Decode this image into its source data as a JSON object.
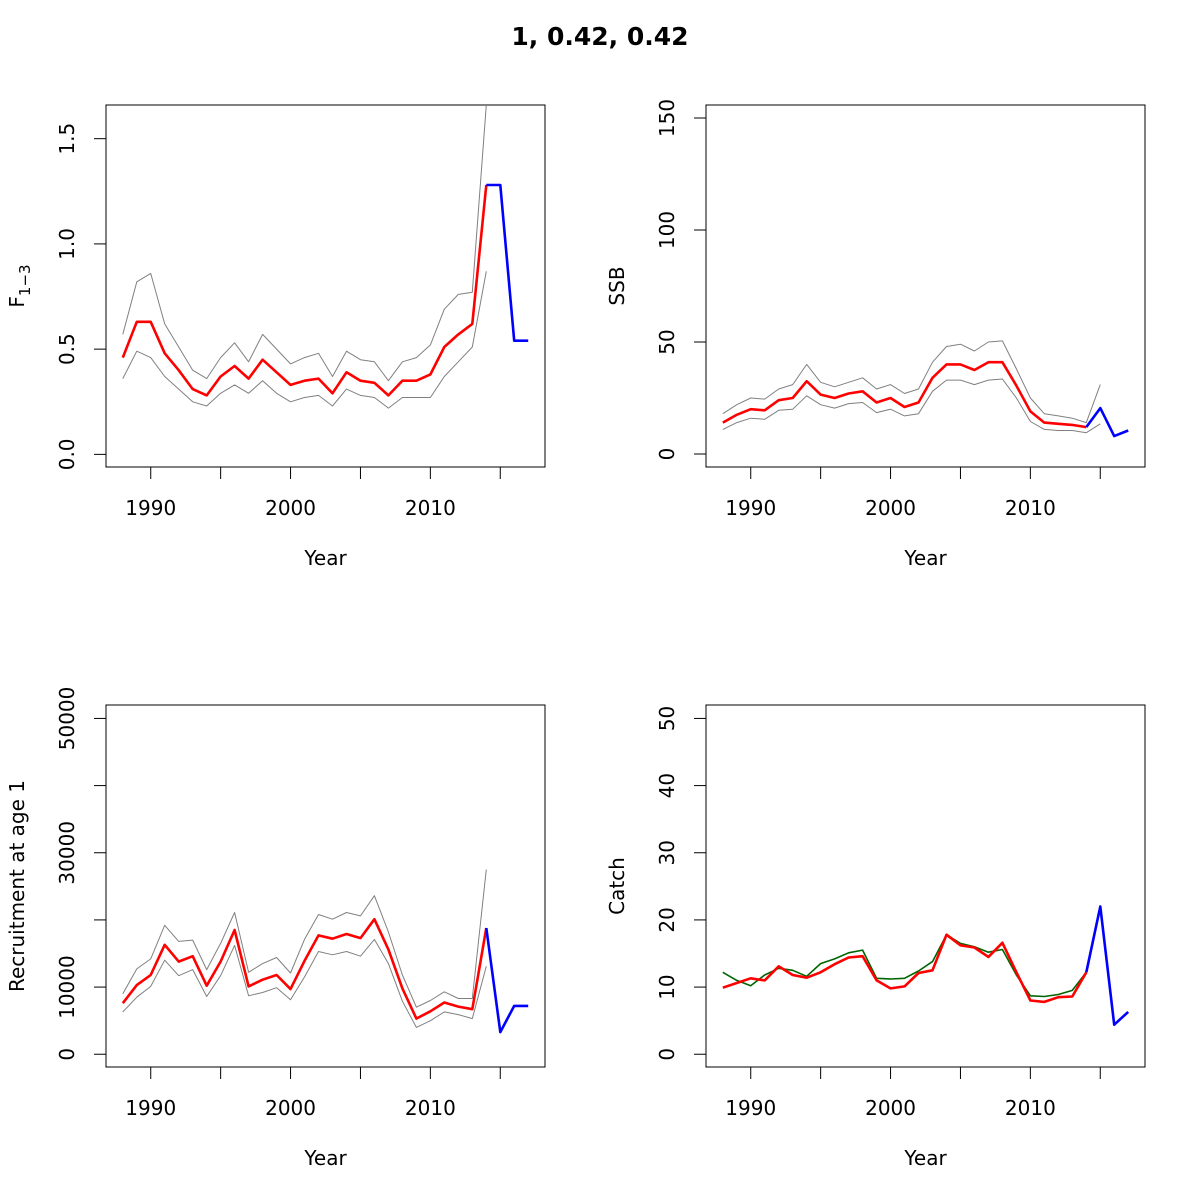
{
  "title": "1, 0.42, 0.42",
  "colors": {
    "estimate": "#ff0000",
    "ci": "#808080",
    "forecast": "#0000ff",
    "observed": "#006400",
    "axis": "#000000"
  },
  "chart_data": [
    {
      "type": "line",
      "title": "",
      "xlabel": "Year",
      "ylabel": "F",
      "ylabel_sub": "1−3",
      "xlim": [
        1986.8,
        2018.2
      ],
      "ylim": [
        -0.06,
        1.66
      ],
      "xticks": [
        1990,
        2000,
        2010
      ],
      "xticks_minor": [
        1995,
        2005,
        2015
      ],
      "yticks": [
        0.0,
        0.5,
        1.0,
        1.5
      ],
      "ytick_labels": [
        "0.0",
        "0.5",
        "1.0",
        "1.5"
      ],
      "grid": false,
      "series": [
        {
          "role": "upper",
          "color": "#808080",
          "x": [
            1988,
            1989,
            1990,
            1991,
            1992,
            1993,
            1994,
            1995,
            1996,
            1997,
            1998,
            1999,
            2000,
            2001,
            2002,
            2003,
            2004,
            2005,
            2006,
            2007,
            2008,
            2009,
            2010,
            2011,
            2012,
            2013,
            2014
          ],
          "y": [
            0.57,
            0.82,
            0.86,
            0.62,
            0.51,
            0.4,
            0.36,
            0.46,
            0.53,
            0.44,
            0.57,
            0.5,
            0.43,
            0.46,
            0.48,
            0.37,
            0.49,
            0.45,
            0.44,
            0.35,
            0.44,
            0.46,
            0.52,
            0.69,
            0.76,
            0.77,
            1.66
          ]
        },
        {
          "role": "lower",
          "color": "#808080",
          "x": [
            1988,
            1989,
            1990,
            1991,
            1992,
            1993,
            1994,
            1995,
            1996,
            1997,
            1998,
            1999,
            2000,
            2001,
            2002,
            2003,
            2004,
            2005,
            2006,
            2007,
            2008,
            2009,
            2010,
            2011,
            2012,
            2013,
            2014
          ],
          "y": [
            0.36,
            0.49,
            0.46,
            0.37,
            0.31,
            0.25,
            0.23,
            0.29,
            0.33,
            0.29,
            0.35,
            0.29,
            0.25,
            0.27,
            0.28,
            0.23,
            0.31,
            0.28,
            0.27,
            0.22,
            0.27,
            0.27,
            0.27,
            0.37,
            0.44,
            0.51,
            0.87
          ]
        },
        {
          "role": "estimate",
          "color": "#ff0000",
          "x": [
            1988,
            1989,
            1990,
            1991,
            1992,
            1993,
            1994,
            1995,
            1996,
            1997,
            1998,
            1999,
            2000,
            2001,
            2002,
            2003,
            2004,
            2005,
            2006,
            2007,
            2008,
            2009,
            2010,
            2011,
            2012,
            2013,
            2014
          ],
          "y": [
            0.46,
            0.63,
            0.63,
            0.48,
            0.4,
            0.31,
            0.28,
            0.37,
            0.42,
            0.36,
            0.45,
            0.39,
            0.33,
            0.35,
            0.36,
            0.29,
            0.39,
            0.35,
            0.34,
            0.28,
            0.35,
            0.35,
            0.38,
            0.51,
            0.57,
            0.62,
            1.28
          ]
        },
        {
          "role": "forecast",
          "color": "#0000ff",
          "x": [
            2014,
            2015,
            2016,
            2017
          ],
          "y": [
            1.28,
            1.28,
            0.54,
            0.54
          ]
        }
      ]
    },
    {
      "type": "line",
      "title": "",
      "xlabel": "Year",
      "ylabel": "SSB",
      "xlim": [
        1986.8,
        2018.2
      ],
      "ylim": [
        -5.8,
        155.8
      ],
      "xticks": [
        1990,
        2000,
        2010
      ],
      "xticks_minor": [
        1995,
        2005,
        2015
      ],
      "yticks": [
        0,
        50,
        100,
        150
      ],
      "ytick_labels": [
        "0",
        "50",
        "100",
        "150"
      ],
      "grid": false,
      "series": [
        {
          "role": "upper",
          "color": "#808080",
          "x": [
            1988,
            1989,
            1990,
            1991,
            1992,
            1993,
            1994,
            1995,
            1996,
            1997,
            1998,
            1999,
            2000,
            2001,
            2002,
            2003,
            2004,
            2005,
            2006,
            2007,
            2008,
            2009,
            2010,
            2011,
            2012,
            2013,
            2014,
            2015
          ],
          "y": [
            18,
            22,
            25,
            24.5,
            29,
            31,
            40,
            32,
            30,
            32,
            34,
            29,
            31,
            27,
            29,
            41,
            48,
            49,
            46,
            50,
            50.5,
            38,
            25,
            18,
            17,
            16,
            14,
            31
          ]
        },
        {
          "role": "lower",
          "color": "#808080",
          "x": [
            1988,
            1989,
            1990,
            1991,
            1992,
            1993,
            1994,
            1995,
            1996,
            1997,
            1998,
            1999,
            2000,
            2001,
            2002,
            2003,
            2004,
            2005,
            2006,
            2007,
            2008,
            2009,
            2010,
            2011,
            2012,
            2013,
            2014,
            2015
          ],
          "y": [
            11,
            14,
            16,
            15.5,
            19.5,
            20,
            26,
            22,
            20.5,
            22.5,
            23,
            18.5,
            20,
            17,
            18,
            28,
            33,
            33,
            31,
            33,
            33.5,
            25,
            14.5,
            11,
            10.5,
            10.5,
            9.5,
            13.5
          ]
        },
        {
          "role": "estimate",
          "color": "#ff0000",
          "x": [
            1988,
            1989,
            1990,
            1991,
            1992,
            1993,
            1994,
            1995,
            1996,
            1997,
            1998,
            1999,
            2000,
            2001,
            2002,
            2003,
            2004,
            2005,
            2006,
            2007,
            2008,
            2009,
            2010,
            2011,
            2012,
            2013,
            2014
          ],
          "y": [
            14,
            17.5,
            20,
            19.5,
            24,
            25,
            32.5,
            26.5,
            25,
            27,
            28,
            23,
            25,
            21,
            23,
            34,
            40,
            40,
            37.5,
            41,
            41,
            30.5,
            19,
            14,
            13.5,
            13,
            12
          ]
        },
        {
          "role": "forecast",
          "color": "#0000ff",
          "x": [
            2014,
            2015,
            2016,
            2017
          ],
          "y": [
            12,
            20.5,
            8,
            10.5
          ]
        }
      ]
    },
    {
      "type": "line",
      "title": "",
      "xlabel": "Year",
      "ylabel": "Recruitment at age 1",
      "xlim": [
        1986.8,
        2018.2
      ],
      "ylim": [
        -1900,
        52000
      ],
      "xticks": [
        1990,
        2000,
        2010
      ],
      "xticks_minor": [
        1995,
        2005,
        2015
      ],
      "yticks": [
        0,
        10000,
        20000,
        30000,
        40000,
        50000
      ],
      "ytick_labels": [
        "0",
        "10000",
        "",
        "30000",
        "",
        "50000"
      ],
      "grid": false,
      "series": [
        {
          "role": "upper",
          "color": "#808080",
          "x": [
            1988,
            1989,
            1990,
            1991,
            1992,
            1993,
            1994,
            1995,
            1996,
            1997,
            1998,
            1999,
            2000,
            2001,
            2002,
            2003,
            2004,
            2005,
            2006,
            2007,
            2008,
            2009,
            2010,
            2011,
            2012,
            2013,
            2014
          ],
          "y": [
            9000,
            12700,
            14200,
            19200,
            16800,
            17000,
            12600,
            16500,
            21100,
            12200,
            13500,
            14400,
            12100,
            17100,
            20800,
            20100,
            21100,
            20600,
            23600,
            18200,
            11800,
            7000,
            8000,
            9300,
            8300,
            8300,
            27500
          ]
        },
        {
          "role": "lower",
          "color": "#808080",
          "x": [
            1988,
            1989,
            1990,
            1991,
            1992,
            1993,
            1994,
            1995,
            1996,
            1997,
            1998,
            1999,
            2000,
            2001,
            2002,
            2003,
            2004,
            2005,
            2006,
            2007,
            2008,
            2009,
            2010,
            2011,
            2012,
            2013,
            2014
          ],
          "y": [
            6300,
            8500,
            10100,
            14000,
            11700,
            12600,
            8600,
            11700,
            16200,
            8700,
            9200,
            9900,
            8100,
            11500,
            15300,
            14800,
            15300,
            14600,
            17100,
            13500,
            7900,
            4000,
            5000,
            6300,
            5900,
            5300,
            13100
          ]
        },
        {
          "role": "estimate",
          "color": "#ff0000",
          "x": [
            1988,
            1989,
            1990,
            1991,
            1992,
            1993,
            1994,
            1995,
            1996,
            1997,
            1998,
            1999,
            2000,
            2001,
            2002,
            2003,
            2004,
            2005,
            2006,
            2007,
            2008,
            2009,
            2010,
            2011,
            2012,
            2013,
            2014
          ],
          "y": [
            7600,
            10300,
            11800,
            16300,
            13800,
            14600,
            10200,
            13800,
            18500,
            10100,
            11100,
            11800,
            9700,
            13900,
            17700,
            17200,
            17900,
            17300,
            20100,
            15600,
            9800,
            5300,
            6400,
            7700,
            7100,
            6700,
            18800
          ]
        },
        {
          "role": "forecast",
          "color": "#0000ff",
          "x": [
            2014,
            2015,
            2016,
            2017
          ],
          "y": [
            18800,
            3300,
            7200,
            7200
          ]
        }
      ]
    },
    {
      "type": "line",
      "title": "",
      "xlabel": "Year",
      "ylabel": "Catch",
      "xlim": [
        1986.8,
        2018.2
      ],
      "ylim": [
        -1.9,
        52.0
      ],
      "xticks": [
        1990,
        2000,
        2010
      ],
      "xticks_minor": [
        1995,
        2005,
        2015
      ],
      "yticks": [
        0,
        10,
        20,
        30,
        40,
        50
      ],
      "ytick_labels": [
        "0",
        "10",
        "20",
        "30",
        "40",
        "50"
      ],
      "grid": false,
      "series": [
        {
          "role": "observed",
          "color": "#006400",
          "x": [
            1988,
            1989,
            1990,
            1991,
            1992,
            1993,
            1994,
            1995,
            1996,
            1997,
            1998,
            1999,
            2000,
            2001,
            2002,
            2003,
            2004,
            2005,
            2006,
            2007,
            2008,
            2009,
            2010,
            2011,
            2012,
            2013,
            2014
          ],
          "y": [
            12.2,
            11,
            10.2,
            11.8,
            12.8,
            12.5,
            11.6,
            13.5,
            14.2,
            15.1,
            15.5,
            11.3,
            11.2,
            11.3,
            12.4,
            13.8,
            17.8,
            16.5,
            16,
            15.2,
            15.6,
            11.8,
            8.7,
            8.6,
            8.9,
            9.5,
            12.2
          ]
        },
        {
          "role": "estimate",
          "color": "#ff0000",
          "x": [
            1988,
            1989,
            1990,
            1991,
            1992,
            1993,
            1994,
            1995,
            1996,
            1997,
            1998,
            1999,
            2000,
            2001,
            2002,
            2003,
            2004,
            2005,
            2006,
            2007,
            2008,
            2009,
            2010,
            2011,
            2012,
            2013,
            2014
          ],
          "y": [
            9.9,
            10.6,
            11.3,
            11,
            13.1,
            11.8,
            11.4,
            12.2,
            13.4,
            14.4,
            14.6,
            11,
            9.8,
            10.1,
            12.1,
            12.5,
            17.8,
            16.2,
            15.9,
            14.5,
            16.6,
            12.2,
            8,
            7.8,
            8.5,
            8.6,
            12.2
          ]
        },
        {
          "role": "forecast",
          "color": "#0000ff",
          "x": [
            2014,
            2015,
            2016,
            2017
          ],
          "y": [
            12.2,
            22,
            4.4,
            6.3
          ]
        }
      ]
    }
  ]
}
